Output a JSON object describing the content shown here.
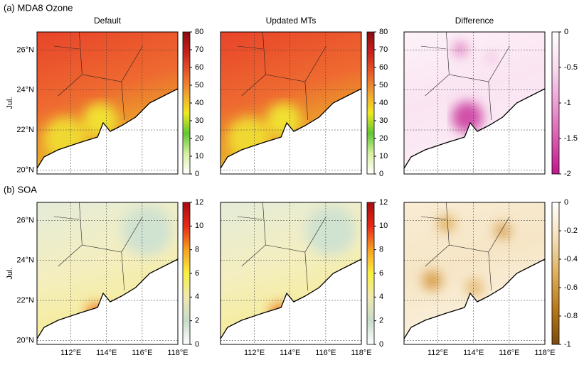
{
  "rows": [
    {
      "label": "(a)  MDA8 Ozone",
      "side_label": "Jul.",
      "panels": [
        {
          "title": "Default",
          "colorbar": {
            "lim": [
              0,
              80
            ],
            "ticks": [
              0,
              10,
              20,
              30,
              40,
              50,
              60,
              70,
              80
            ],
            "colors": [
              "#ffffff",
              "#d8f0a0",
              "#60c830",
              "#f0e820",
              "#f0a030",
              "#e85a28",
              "#c8201c",
              "#8c0c10"
            ]
          }
        },
        {
          "title": "Updated MTs",
          "colorbar": {
            "lim": [
              0,
              80
            ],
            "ticks": [
              0,
              10,
              20,
              30,
              40,
              50,
              60,
              70,
              80
            ],
            "colors": [
              "#ffffff",
              "#d8f0a0",
              "#60c830",
              "#f0e820",
              "#f0a030",
              "#e85a28",
              "#c8201c",
              "#8c0c10"
            ]
          }
        },
        {
          "title": "Difference",
          "colorbar": {
            "lim": [
              -2,
              0
            ],
            "ticks": [
              0,
              -0.5,
              -1,
              -1.5,
              -2
            ],
            "colors": [
              "#c0168c",
              "#d85cb0",
              "#eca0d4",
              "#f8dcef",
              "#ffffff"
            ]
          }
        }
      ]
    },
    {
      "label": "(b) SOA",
      "side_label": "Jul.",
      "panels": [
        {
          "title": null,
          "colorbar": {
            "lim": [
              0,
              12
            ],
            "ticks": [
              0,
              2,
              4,
              6,
              8,
              10,
              12
            ],
            "colors": [
              "#ffffff",
              "#c8dcc8",
              "#f0e8b0",
              "#f8f040",
              "#f8a020",
              "#e82818",
              "#a80c10"
            ]
          }
        },
        {
          "title": null,
          "colorbar": {
            "lim": [
              0,
              12
            ],
            "ticks": [
              0,
              2,
              4,
              6,
              8,
              10,
              12
            ],
            "colors": [
              "#ffffff",
              "#c8dcc8",
              "#f0e8b0",
              "#f8f040",
              "#f8a020",
              "#e82818",
              "#a80c10"
            ]
          }
        },
        {
          "title": null,
          "colorbar": {
            "lim": [
              -1,
              0
            ],
            "ticks": [
              0,
              -0.2,
              -0.4,
              -0.6,
              -0.8,
              -1
            ],
            "colors": [
              "#7a4a10",
              "#b8781c",
              "#e0b060",
              "#f4e0b8",
              "#ffffff"
            ]
          }
        }
      ]
    }
  ],
  "lat_ticks": [
    {
      "value": 26,
      "label": "26°N"
    },
    {
      "value": 24,
      "label": "24°N"
    },
    {
      "value": 22,
      "label": "22°N"
    },
    {
      "value": 20,
      "label": "20°N"
    }
  ],
  "lon_ticks": [
    {
      "value": 112,
      "label": "112°E"
    },
    {
      "value": 114,
      "label": "114°E"
    },
    {
      "value": 116,
      "label": "116°E"
    },
    {
      "value": 118,
      "label": "118°E"
    }
  ],
  "ylim": [
    19.8,
    26.9
  ],
  "xlim": [
    110.1,
    118
  ]
}
